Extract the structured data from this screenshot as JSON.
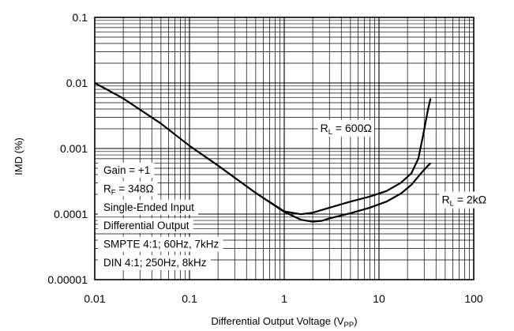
{
  "chart_data": {
    "type": "line",
    "xlabel": "Differential Output Voltage (V",
    "xlabel_sub": "PP",
    "xlabel_end": ")",
    "ylabel": "IMD (%)",
    "xscale": "log",
    "yscale": "log",
    "xlim": [
      0.01,
      100
    ],
    "ylim": [
      1e-05,
      0.1
    ],
    "grid": true,
    "x_ticks": [
      {
        "value": 0.01,
        "label": "0.01"
      },
      {
        "value": 0.1,
        "label": "0.1"
      },
      {
        "value": 1,
        "label": "1"
      },
      {
        "value": 10,
        "label": "10"
      },
      {
        "value": 100,
        "label": "100"
      }
    ],
    "y_ticks": [
      {
        "value": 0.1,
        "label": "0.1"
      },
      {
        "value": 0.01,
        "label": "0.01"
      },
      {
        "value": 0.001,
        "label": "0.001"
      },
      {
        "value": 0.0001,
        "label": "0.0001"
      },
      {
        "value": 1e-05,
        "label": "0.00001"
      }
    ],
    "notes": [
      {
        "main": "Gain = +1"
      },
      {
        "main": "R",
        "sub": "F",
        "rest": " = 348Ω"
      },
      {
        "main": "Single-Ended Input"
      },
      {
        "main": "Differential Output"
      },
      {
        "main": "SMPTE 4:1; 60Hz, 7kHz"
      },
      {
        "main": "DIN 4:1; 250Hz, 8kHz"
      }
    ],
    "series": [
      {
        "label_main": "R",
        "label_sub": "L",
        "label_rest": " = 600Ω",
        "label_at": [
          2.4,
          0.0018
        ],
        "x": [
          0.01,
          0.02,
          0.05,
          0.1,
          0.2,
          0.5,
          1,
          1.5,
          2,
          3,
          5,
          8,
          12,
          17,
          22,
          26,
          29,
          31,
          33,
          35
        ],
        "y": [
          0.01,
          0.0058,
          0.0024,
          0.0011,
          0.00055,
          0.00021,
          0.00011,
          9.95e-05,
          0.000105,
          0.000125,
          0.000155,
          0.000185,
          0.000225,
          0.0003,
          0.00042,
          0.0007,
          0.0015,
          0.0025,
          0.004,
          0.0058
        ]
      },
      {
        "label_main": "R",
        "label_sub": "L",
        "label_rest": " = 2kΩ",
        "label_at": [
          46,
          0.000145
        ],
        "x": [
          0.5,
          1,
          1.5,
          2,
          2.5,
          3,
          5,
          8,
          12,
          17,
          22,
          27,
          31,
          35
        ],
        "y": [
          0.00021,
          0.000108,
          8.2e-05,
          7.65e-05,
          7.9e-05,
          8.6e-05,
          0.000103,
          0.000125,
          0.000155,
          0.000205,
          0.00028,
          0.0004,
          0.0005,
          0.0006
        ]
      }
    ]
  }
}
